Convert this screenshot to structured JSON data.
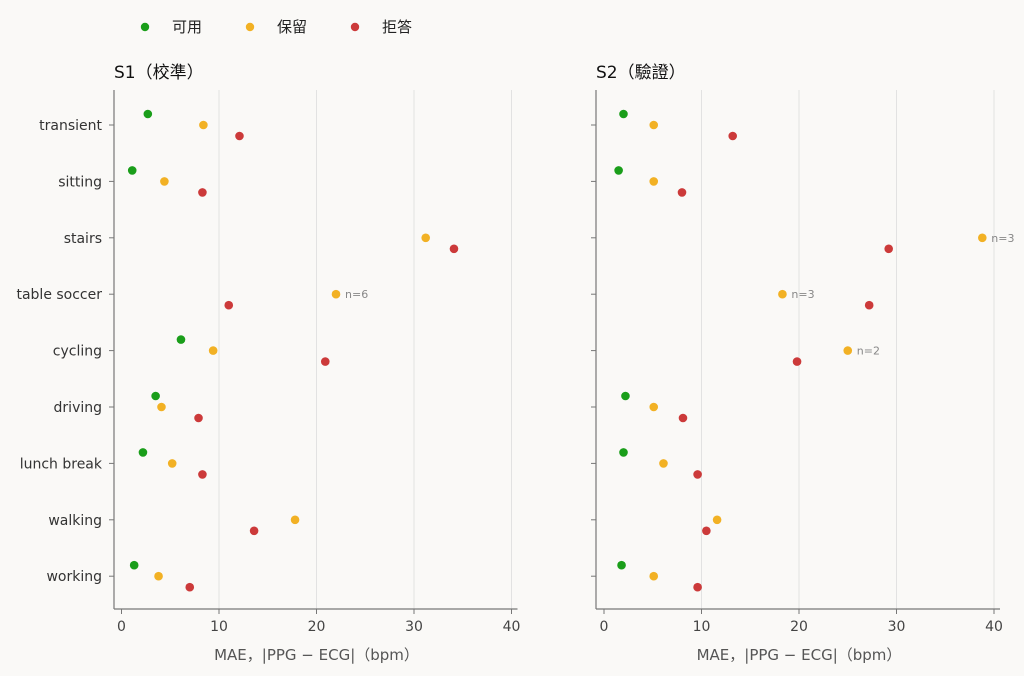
{
  "legend": [
    {
      "label": "可用",
      "color": "#1a9e1a"
    },
    {
      "label": "保留",
      "color": "#f2b124"
    },
    {
      "label": "拒答",
      "color": "#cc3a3a"
    }
  ],
  "chart_data": [
    {
      "type": "scatter",
      "title": "S1（校準）",
      "xlabel": "MAE，|PPG − ECG|（bpm）",
      "xlim": [
        0,
        40
      ],
      "xticks": [
        0,
        10,
        20,
        30,
        40
      ],
      "grid": true,
      "categories": [
        "transient",
        "sitting",
        "stairs",
        "table soccer",
        "cycling",
        "driving",
        "lunch break",
        "walking",
        "working"
      ],
      "series": [
        {
          "name": "可用",
          "color": "#1a9e1a",
          "values": [
            2.7,
            1.1,
            null,
            null,
            6.1,
            3.5,
            2.2,
            null,
            1.3
          ]
        },
        {
          "name": "保留",
          "color": "#f2b124",
          "values": [
            8.4,
            4.4,
            31.2,
            22.0,
            9.4,
            4.1,
            5.2,
            17.8,
            3.8
          ]
        },
        {
          "name": "拒答",
          "color": "#cc3a3a",
          "values": [
            12.1,
            8.3,
            34.1,
            11.0,
            20.9,
            7.9,
            8.3,
            13.6,
            7.0
          ]
        }
      ],
      "annotations": [
        {
          "category": "table soccer",
          "series": "保留",
          "text": "n=6"
        }
      ]
    },
    {
      "type": "scatter",
      "title": "S2（驗證）",
      "xlabel": "MAE，|PPG − ECG|（bpm）",
      "xlim": [
        0,
        40
      ],
      "xticks": [
        0,
        10,
        20,
        30,
        40
      ],
      "grid": true,
      "categories": [
        "transient",
        "sitting",
        "stairs",
        "table soccer",
        "cycling",
        "driving",
        "lunch break",
        "walking",
        "working"
      ],
      "series": [
        {
          "name": "可用",
          "color": "#1a9e1a",
          "values": [
            2.0,
            1.5,
            null,
            null,
            null,
            2.2,
            2.0,
            null,
            1.8
          ]
        },
        {
          "name": "保留",
          "color": "#f2b124",
          "values": [
            5.1,
            5.1,
            38.8,
            18.3,
            25.0,
            5.1,
            6.1,
            11.6,
            5.1
          ]
        },
        {
          "name": "拒答",
          "color": "#cc3a3a",
          "values": [
            13.2,
            8.0,
            29.2,
            27.2,
            19.8,
            8.1,
            9.6,
            10.5,
            9.6
          ]
        }
      ],
      "annotations": [
        {
          "category": "stairs",
          "series": "保留",
          "text": "n=3"
        },
        {
          "category": "table soccer",
          "series": "保留",
          "text": "n=3"
        },
        {
          "category": "cycling",
          "series": "保留",
          "text": "n=2"
        }
      ]
    }
  ]
}
